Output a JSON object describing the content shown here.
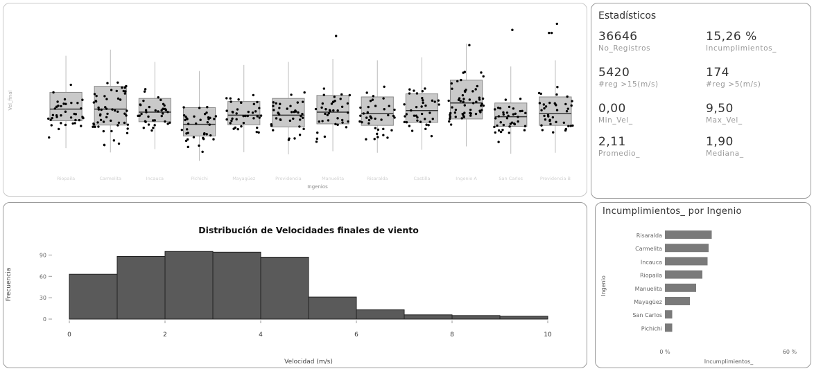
{
  "boxplot": {
    "xlabel": "Ingenios",
    "ylabel": "Vel_final",
    "categories": [
      "Riopaila",
      "Carmelita",
      "Incauca",
      "Pichichi",
      "Mayagüez",
      "Providencia",
      "Manuelita",
      "Risaralda",
      "Castilla",
      "Ingenio A",
      "San Carlos",
      "Providencia B"
    ],
    "category_labels_visible": false,
    "medians": [
      2.1,
      2.1,
      2.0,
      1.6,
      1.9,
      1.9,
      2.0,
      1.95,
      2.05,
      2.3,
      1.85,
      1.95
    ]
  },
  "stats": {
    "title": "Estadísticos",
    "kpis": [
      {
        "value": "36646",
        "label": "No_Registros"
      },
      {
        "value": "15,26 %",
        "label": "Incumplimientos_"
      },
      {
        "value": "5420",
        "label": "#reg >15(m/s)"
      },
      {
        "value": "174",
        "label": "#reg >5(m/s)"
      },
      {
        "value": "0,00",
        "label": "Min_Vel_"
      },
      {
        "value": "9,50",
        "label": "Max_Vel_"
      },
      {
        "value": "2,11",
        "label": "Promedio_"
      },
      {
        "value": "1,90",
        "label": "Mediana_"
      }
    ]
  },
  "histogram": {
    "title": "Distribución de Velocidades finales de viento",
    "xlabel": "Velocidad (m/s)",
    "ylabel": "Frecuencia",
    "bar_color": "#5a5a5a"
  },
  "incumplimientos": {
    "title": "Incumplimientos_ por Ingenio",
    "ylabel": "Ingenio",
    "xlabel": "Incumplimientos_",
    "bar_color": "#7a7a7a"
  },
  "chart_data": [
    {
      "type": "bar",
      "title": "Distribución de Velocidades finales de viento",
      "xlabel": "Velocidad (m/s)",
      "ylabel": "Frecuencia",
      "bin_edges": [
        0,
        1,
        2,
        3,
        4,
        5,
        6,
        7,
        8,
        9,
        10
      ],
      "values": [
        63,
        88,
        95,
        94,
        87,
        31,
        13,
        6,
        5,
        4
      ],
      "x_ticks": [
        "0",
        "2",
        "4",
        "6",
        "8",
        "10"
      ],
      "y_ticks": [
        "0",
        "30",
        "60",
        "90"
      ],
      "xlim": [
        0,
        10
      ],
      "ylim": [
        0,
        105
      ]
    },
    {
      "type": "bar",
      "orientation": "horizontal",
      "title": "Incumplimientos_ por Ingenio",
      "xlabel": "Incumplimientos_",
      "ylabel": "Ingenio",
      "categories": [
        "Risaralda",
        "Carmelita",
        "Incauca",
        "Riopaila",
        "Manuelita",
        "Mayagüez",
        "San Carlos",
        "Pichichi"
      ],
      "values": [
        22.5,
        21.0,
        20.5,
        18.0,
        15.0,
        12.0,
        3.5,
        3.5
      ],
      "x_ticks": [
        "0 %",
        "60 %"
      ],
      "xlim": [
        0,
        60
      ]
    }
  ]
}
